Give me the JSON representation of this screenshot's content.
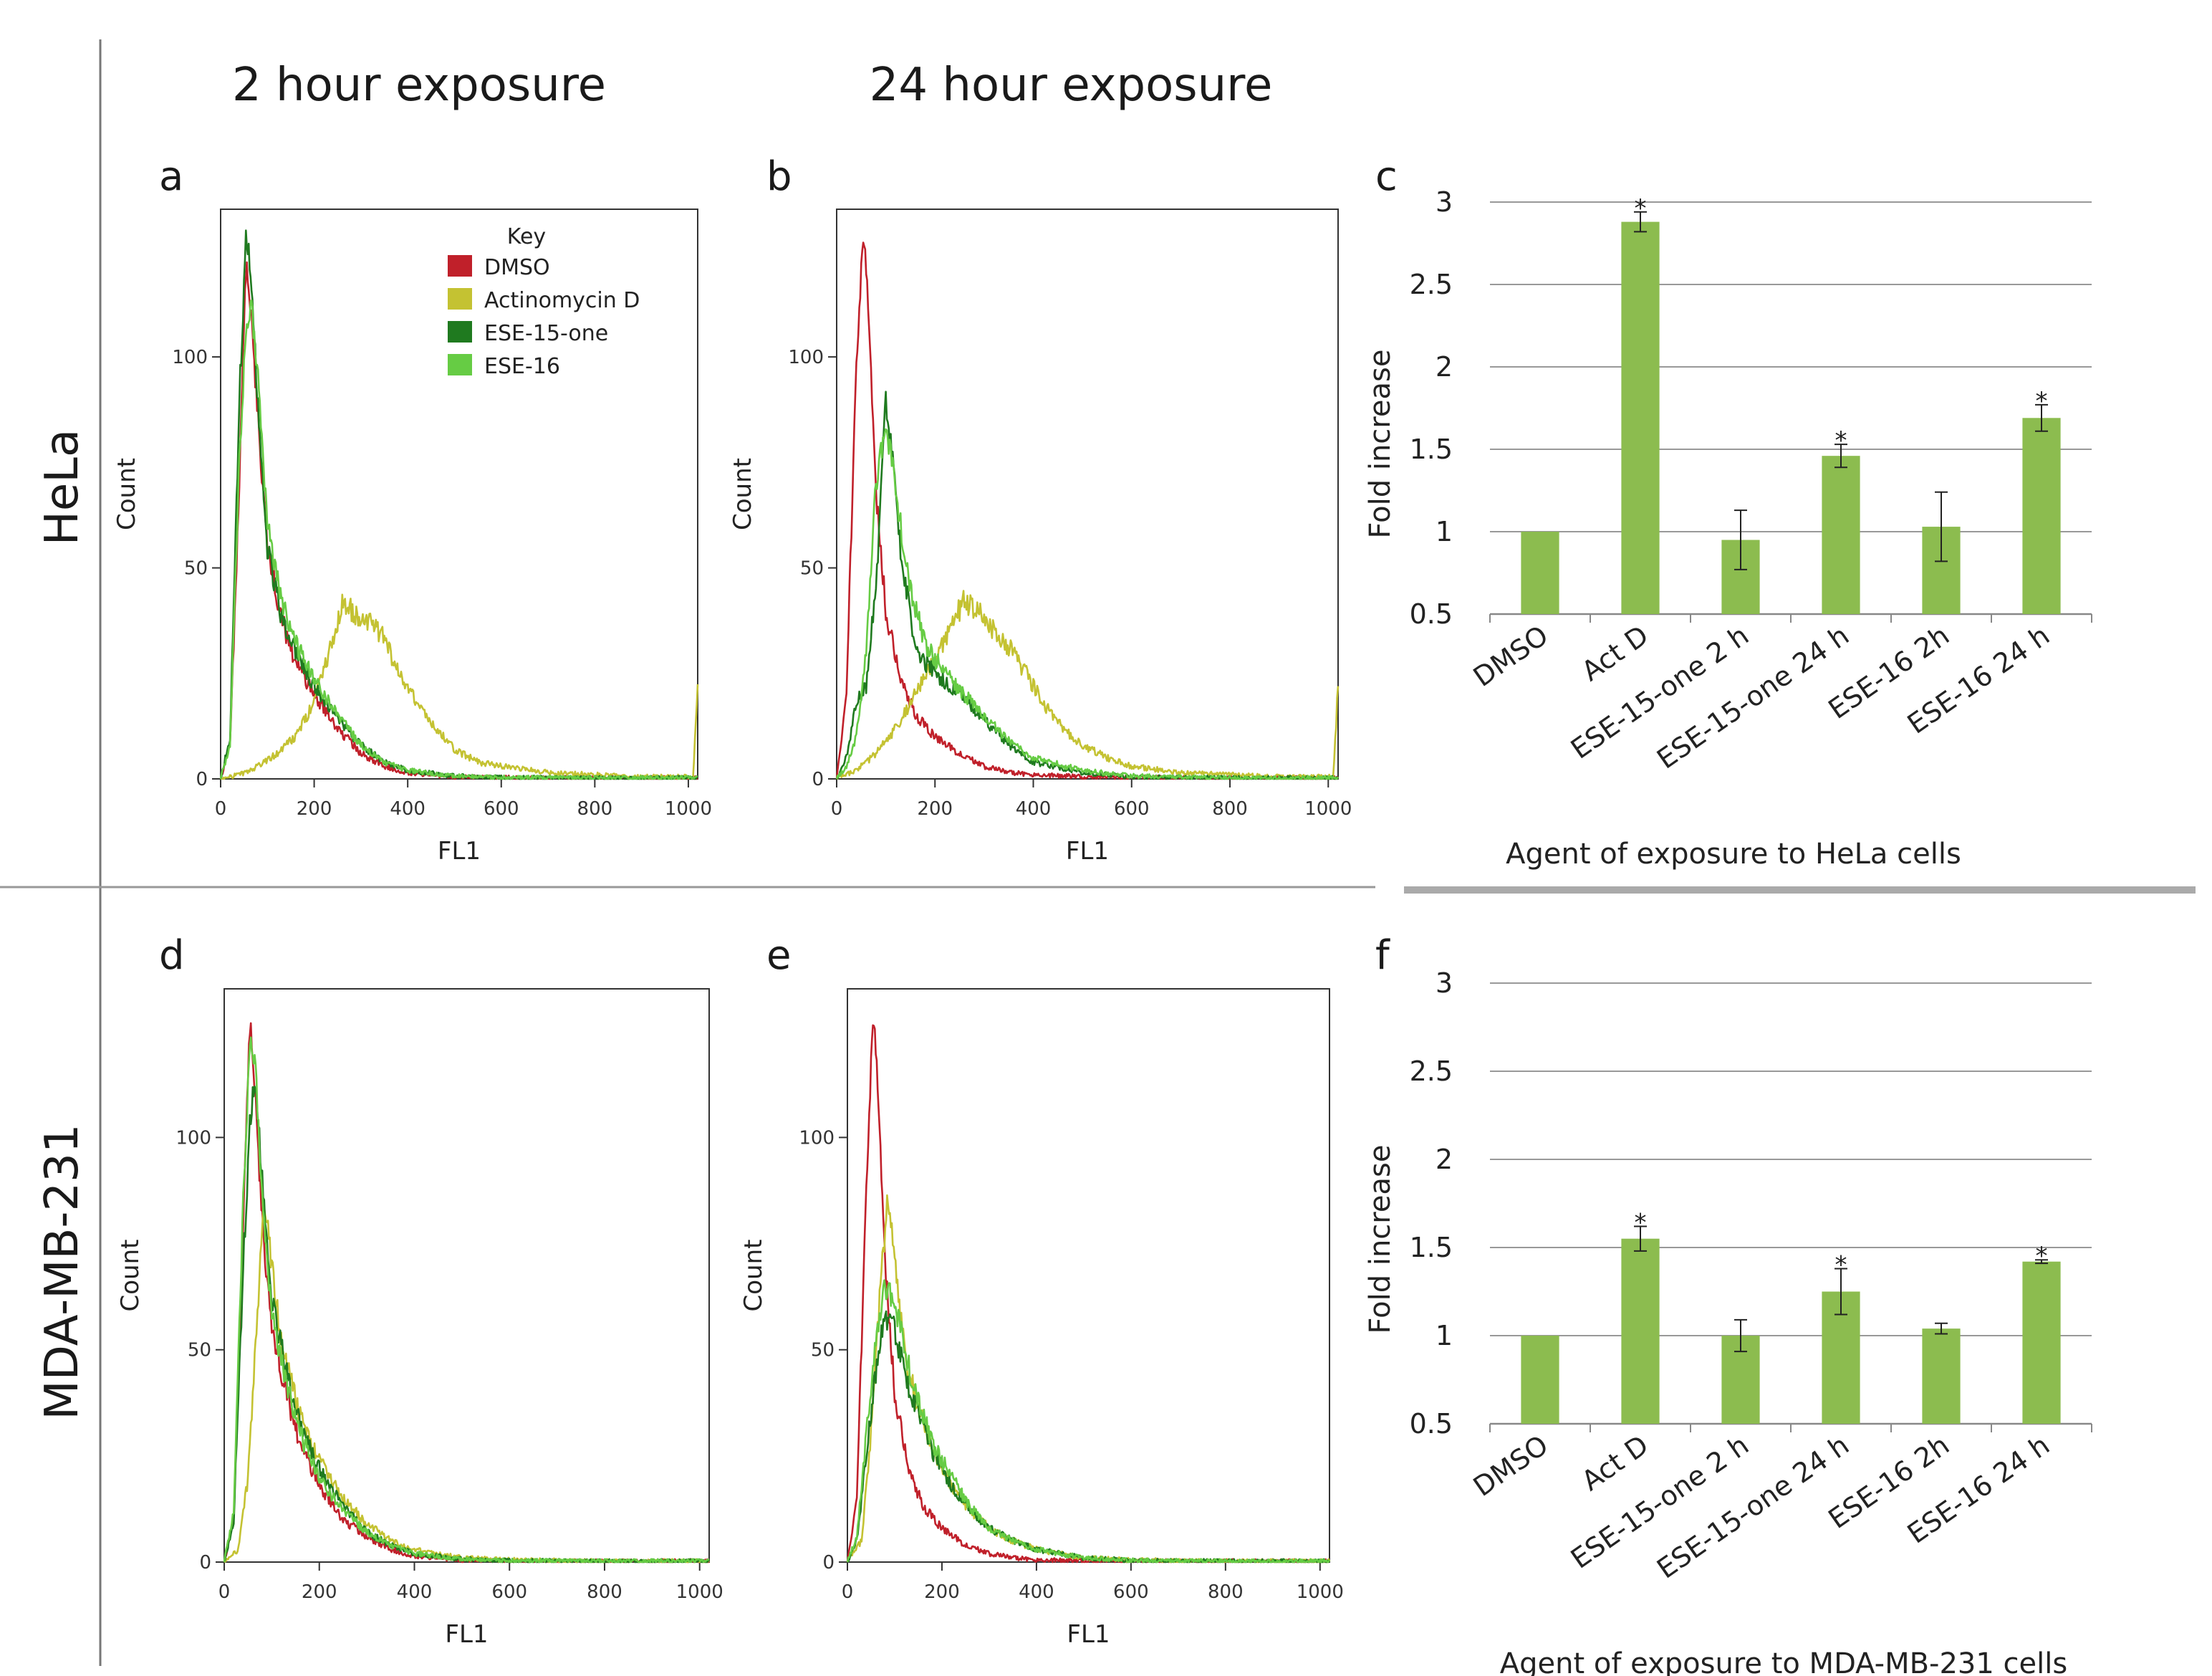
{
  "figure": {
    "col_titles": [
      "2 hour exposure",
      "24 hour exposure"
    ],
    "row_titles": [
      "HeLa",
      "MDA-MB-231"
    ]
  },
  "legend": {
    "title": "Key",
    "items": [
      {
        "label": "DMSO",
        "color": "#c0202a"
      },
      {
        "label": "Actinomycin D",
        "color": "#c4c232"
      },
      {
        "label": "ESE-15-one",
        "color": "#1f7a1f"
      },
      {
        "label": "ESE-16",
        "color": "#66cc44"
      }
    ]
  },
  "chart_data": [
    {
      "id": "a",
      "type": "line",
      "title": "",
      "xlabel": "FL1",
      "ylabel": "Count",
      "xlim": [
        0,
        1020
      ],
      "ylim": [
        0,
        135
      ],
      "xticks": [
        0,
        200,
        400,
        600,
        800,
        1000
      ],
      "yticks": [
        0,
        50,
        100
      ],
      "series": [
        {
          "name": "DMSO",
          "color": "#c0202a",
          "x": [
            0,
            20,
            40,
            55,
            65,
            80,
            100,
            130,
            160,
            200,
            250,
            300,
            350,
            400,
            500,
            600,
            800,
            1000
          ],
          "y": [
            0,
            8,
            70,
            125,
            110,
            85,
            55,
            38,
            28,
            20,
            12,
            6,
            3,
            1.5,
            0.5,
            0.3,
            0.2,
            0.2
          ]
        },
        {
          "name": "Actinomycin D",
          "color": "#c4c232",
          "x": [
            0,
            40,
            80,
            120,
            160,
            200,
            240,
            260,
            300,
            340,
            380,
            420,
            460,
            500,
            550,
            600,
            700,
            800,
            900,
            1000,
            1010,
            1020
          ],
          "y": [
            0,
            1,
            3,
            6,
            10,
            18,
            33,
            42,
            38,
            35,
            26,
            18,
            12,
            7,
            4,
            3,
            1.5,
            1,
            0.5,
            0.5,
            0.5,
            22
          ]
        },
        {
          "name": "ESE-15-one",
          "color": "#1f7a1f",
          "x": [
            0,
            20,
            40,
            55,
            65,
            80,
            100,
            130,
            160,
            200,
            250,
            300,
            350,
            400,
            500,
            600,
            800,
            1000
          ],
          "y": [
            0,
            10,
            90,
            130,
            120,
            88,
            55,
            38,
            30,
            22,
            14,
            8,
            4,
            2,
            0.7,
            0.3,
            0.2,
            0.2
          ]
        },
        {
          "name": "ESE-16",
          "color": "#66cc44",
          "x": [
            0,
            20,
            40,
            55,
            65,
            80,
            100,
            130,
            160,
            200,
            250,
            300,
            350,
            400,
            500,
            600,
            800,
            1000
          ],
          "y": [
            0,
            8,
            75,
            108,
            113,
            95,
            60,
            42,
            32,
            24,
            15,
            8,
            4,
            2,
            0.7,
            0.3,
            0.2,
            0.2
          ]
        }
      ]
    },
    {
      "id": "b",
      "type": "line",
      "title": "",
      "xlabel": "FL1",
      "ylabel": "Count",
      "xlim": [
        0,
        1020
      ],
      "ylim": [
        0,
        135
      ],
      "xticks": [
        0,
        200,
        400,
        600,
        800,
        1000
      ],
      "yticks": [
        0,
        50,
        100
      ],
      "series": [
        {
          "name": "DMSO",
          "color": "#c0202a",
          "x": [
            0,
            20,
            40,
            55,
            65,
            80,
            100,
            130,
            160,
            200,
            250,
            300,
            350,
            400,
            500,
            600,
            800,
            1000
          ],
          "y": [
            0,
            20,
            100,
            130,
            110,
            68,
            40,
            24,
            15,
            10,
            6,
            3,
            1.5,
            1,
            0.5,
            0.3,
            0.2,
            0.2
          ]
        },
        {
          "name": "Actinomycin D",
          "color": "#c4c232",
          "x": [
            0,
            40,
            80,
            120,
            160,
            200,
            240,
            260,
            300,
            340,
            380,
            420,
            460,
            500,
            550,
            600,
            700,
            800,
            900,
            1000,
            1010,
            1020
          ],
          "y": [
            0,
            2,
            6,
            12,
            20,
            28,
            38,
            42,
            38,
            33,
            26,
            18,
            12,
            8,
            5,
            3,
            1.5,
            1,
            0.5,
            0.5,
            0.5,
            22
          ]
        },
        {
          "name": "ESE-15-one",
          "color": "#1f7a1f",
          "x": [
            0,
            20,
            40,
            60,
            80,
            100,
            110,
            130,
            160,
            200,
            250,
            300,
            350,
            400,
            500,
            600,
            800,
            1000
          ],
          "y": [
            0,
            5,
            18,
            22,
            45,
            90,
            80,
            55,
            30,
            25,
            20,
            14,
            8,
            4,
            1.5,
            0.5,
            0.2,
            0.2
          ]
        },
        {
          "name": "ESE-16",
          "color": "#66cc44",
          "x": [
            0,
            20,
            40,
            60,
            80,
            100,
            120,
            150,
            180,
            220,
            260,
            300,
            350,
            400,
            500,
            600,
            800,
            1000
          ],
          "y": [
            0,
            3,
            10,
            30,
            70,
            85,
            68,
            45,
            32,
            25,
            20,
            15,
            9,
            5,
            2,
            0.7,
            0.2,
            0.2
          ]
        }
      ]
    },
    {
      "id": "c",
      "type": "bar",
      "title": "",
      "xlabel": "Agent of exposure to HeLa cells",
      "ylabel": "Fold increase",
      "ylim": [
        0.5,
        3
      ],
      "yticks": [
        0.5,
        1,
        1.5,
        2,
        2.5,
        3
      ],
      "ytick_labels": [
        "0.5",
        "1",
        "1.5",
        "2",
        "2.5",
        "3"
      ],
      "categories": [
        "DMSO",
        "Act D",
        "ESE-15-one 2 h",
        "ESE-15-one 24 h",
        "ESE-16 2h",
        "ESE-16 24 h"
      ],
      "values": [
        1.0,
        2.88,
        0.95,
        1.46,
        1.03,
        1.69
      ],
      "errors": [
        0.0,
        0.06,
        0.18,
        0.07,
        0.21,
        0.08
      ],
      "significant": [
        false,
        true,
        false,
        true,
        false,
        true
      ],
      "star_label": "*",
      "bar_color": "#8cbc4f"
    },
    {
      "id": "d",
      "type": "line",
      "title": "",
      "xlabel": "FL1",
      "ylabel": "Count",
      "xlim": [
        0,
        1020
      ],
      "ylim": [
        0,
        135
      ],
      "xticks": [
        0,
        200,
        400,
        600,
        800,
        1000
      ],
      "yticks": [
        0,
        50,
        100
      ],
      "series": [
        {
          "name": "DMSO",
          "color": "#c0202a",
          "x": [
            0,
            20,
            40,
            55,
            65,
            80,
            100,
            130,
            160,
            200,
            250,
            300,
            350,
            400,
            500,
            600,
            800,
            1000
          ],
          "y": [
            0,
            10,
            80,
            130,
            110,
            80,
            55,
            40,
            28,
            18,
            10,
            6,
            3,
            1.5,
            0.5,
            0.3,
            0.2,
            0.2
          ]
        },
        {
          "name": "Actinomycin D",
          "color": "#c4c232",
          "x": [
            0,
            30,
            50,
            70,
            85,
            100,
            120,
            150,
            180,
            220,
            260,
            300,
            350,
            400,
            500,
            600,
            800,
            1000
          ],
          "y": [
            0,
            3,
            20,
            60,
            85,
            70,
            52,
            38,
            28,
            20,
            14,
            9,
            5,
            3,
            1,
            0.5,
            0.2,
            0.2
          ]
        },
        {
          "name": "ESE-15-one",
          "color": "#1f7a1f",
          "x": [
            0,
            20,
            40,
            55,
            65,
            80,
            100,
            130,
            160,
            200,
            250,
            300,
            350,
            400,
            500,
            600,
            800,
            1000
          ],
          "y": [
            0,
            10,
            70,
            105,
            115,
            90,
            62,
            45,
            32,
            22,
            13,
            7,
            4,
            2,
            0.7,
            0.3,
            0.2,
            0.2
          ]
        },
        {
          "name": "ESE-16",
          "color": "#66cc44",
          "x": [
            0,
            20,
            40,
            55,
            65,
            80,
            100,
            130,
            160,
            200,
            250,
            300,
            350,
            400,
            500,
            600,
            800,
            1000
          ],
          "y": [
            0,
            12,
            85,
            125,
            118,
            85,
            58,
            42,
            30,
            20,
            12,
            7,
            4,
            2,
            0.7,
            0.3,
            0.2,
            0.2
          ]
        }
      ]
    },
    {
      "id": "e",
      "type": "line",
      "title": "",
      "xlabel": "FL1",
      "ylabel": "Count",
      "xlim": [
        0,
        1020
      ],
      "ylim": [
        0,
        135
      ],
      "xticks": [
        0,
        200,
        400,
        600,
        800,
        1000
      ],
      "yticks": [
        0,
        50,
        100
      ],
      "series": [
        {
          "name": "DMSO",
          "color": "#c0202a",
          "x": [
            0,
            20,
            40,
            55,
            65,
            80,
            100,
            130,
            160,
            200,
            250,
            300,
            350,
            400,
            500,
            600,
            800,
            1000
          ],
          "y": [
            0,
            15,
            90,
            130,
            110,
            70,
            40,
            22,
            13,
            8,
            4,
            2,
            1,
            0.5,
            0.3,
            0.2,
            0.2,
            0.2
          ]
        },
        {
          "name": "Actinomycin D",
          "color": "#c4c232",
          "x": [
            0,
            30,
            50,
            70,
            85,
            100,
            120,
            150,
            180,
            220,
            260,
            300,
            350,
            400,
            500,
            600,
            800,
            1000
          ],
          "y": [
            0,
            5,
            30,
            65,
            85,
            72,
            50,
            36,
            26,
            18,
            12,
            8,
            5,
            3,
            1,
            0.5,
            0.2,
            0.2
          ]
        },
        {
          "name": "ESE-15-one",
          "color": "#1f7a1f",
          "x": [
            0,
            20,
            40,
            60,
            80,
            100,
            120,
            150,
            180,
            220,
            260,
            300,
            350,
            400,
            500,
            600,
            800,
            1000
          ],
          "y": [
            0,
            5,
            25,
            45,
            58,
            55,
            45,
            35,
            26,
            18,
            12,
            8,
            5,
            3,
            1,
            0.4,
            0.2,
            0.2
          ]
        },
        {
          "name": "ESE-16",
          "color": "#66cc44",
          "x": [
            0,
            20,
            40,
            60,
            80,
            100,
            120,
            150,
            180,
            220,
            260,
            300,
            350,
            400,
            500,
            600,
            800,
            1000
          ],
          "y": [
            0,
            6,
            30,
            52,
            65,
            62,
            50,
            38,
            28,
            20,
            13,
            8,
            5,
            3,
            1,
            0.4,
            0.2,
            0.2
          ]
        }
      ]
    },
    {
      "id": "f",
      "type": "bar",
      "title": "",
      "xlabel": "Agent of exposure to MDA-MB-231 cells",
      "ylabel": "Fold increase",
      "ylim": [
        0.5,
        3
      ],
      "yticks": [
        0.5,
        1,
        1.5,
        2,
        2.5,
        3
      ],
      "ytick_labels": [
        "0.5",
        "1",
        "1.5",
        "2",
        "2.5",
        "3"
      ],
      "categories": [
        "DMSO",
        "Act D",
        "ESE-15-one 2 h",
        "ESE-15-one 24 h",
        "ESE-16 2h",
        "ESE-16 24 h"
      ],
      "values": [
        1.0,
        1.55,
        1.0,
        1.25,
        1.04,
        1.42
      ],
      "errors": [
        0.0,
        0.07,
        0.09,
        0.13,
        0.03,
        0.01
      ],
      "significant": [
        false,
        true,
        false,
        true,
        false,
        true
      ],
      "star_label": "*",
      "bar_color": "#8cbc4f"
    }
  ]
}
